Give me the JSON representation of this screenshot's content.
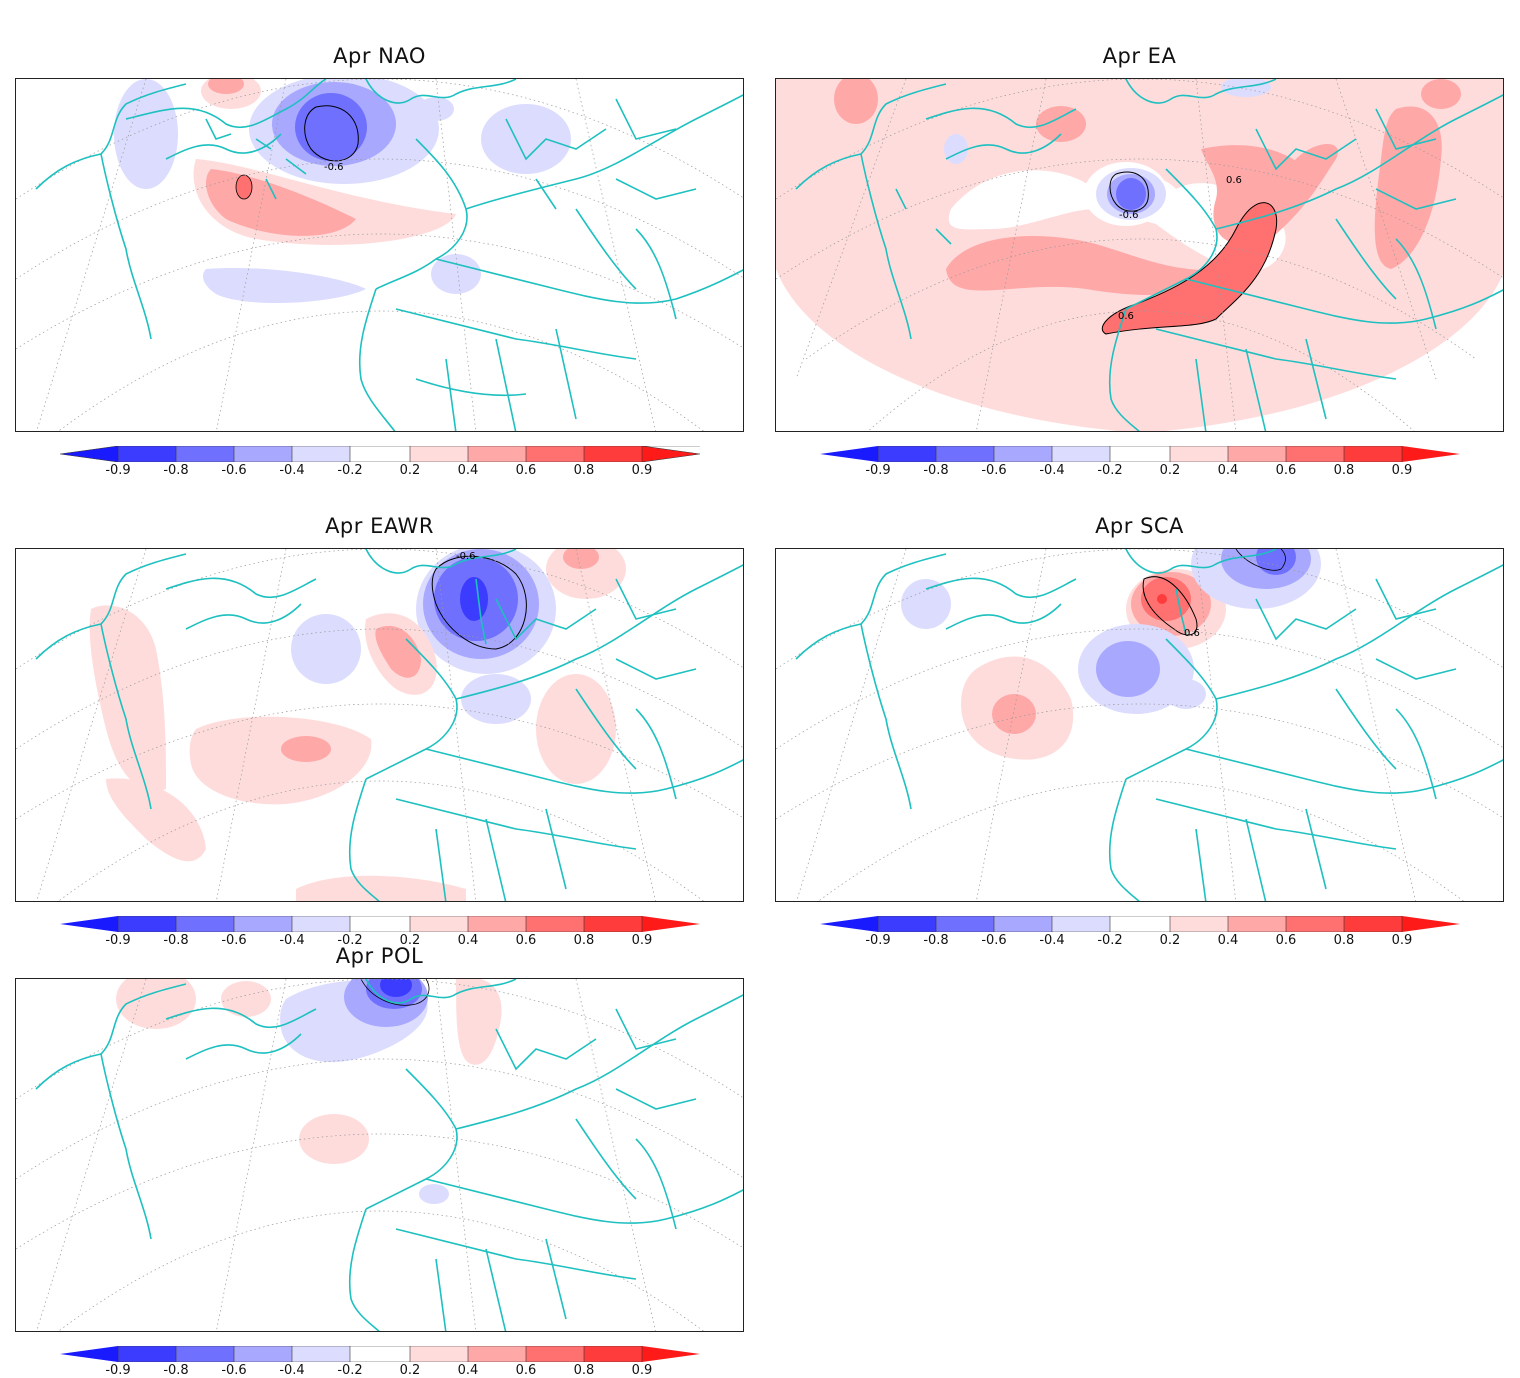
{
  "colorbar": {
    "tick_labels": [
      "-0.9",
      "-0.8",
      "-0.6",
      "-0.4",
      "-0.2",
      "0.2",
      "0.4",
      "0.6",
      "0.8",
      "0.9"
    ],
    "colors": [
      "#1a1aff",
      "#3c3cff",
      "#7070ff",
      "#a8a8ff",
      "#dcdcff",
      "#ffffff",
      "#ffdcdc",
      "#ffa8a8",
      "#ff7070",
      "#ff3c3c",
      "#ff1a1a"
    ]
  },
  "panels": [
    {
      "id": "nao",
      "title": "Apr  NAO",
      "contour_labels": [
        "-0.6"
      ]
    },
    {
      "id": "ea",
      "title": "Apr  EA",
      "contour_labels": [
        "-0.6",
        "0.6",
        "0.6"
      ]
    },
    {
      "id": "eawr",
      "title": "Apr  EAWR",
      "contour_labels": [
        "-0.6"
      ]
    },
    {
      "id": "sca",
      "title": "Apr  SCA",
      "contour_labels": [
        "0.6"
      ]
    },
    {
      "id": "pol",
      "title": "Apr  POL",
      "contour_labels": []
    }
  ],
  "map": {
    "coastline_color": "#1ec0c0",
    "grid_color": "#999999"
  }
}
